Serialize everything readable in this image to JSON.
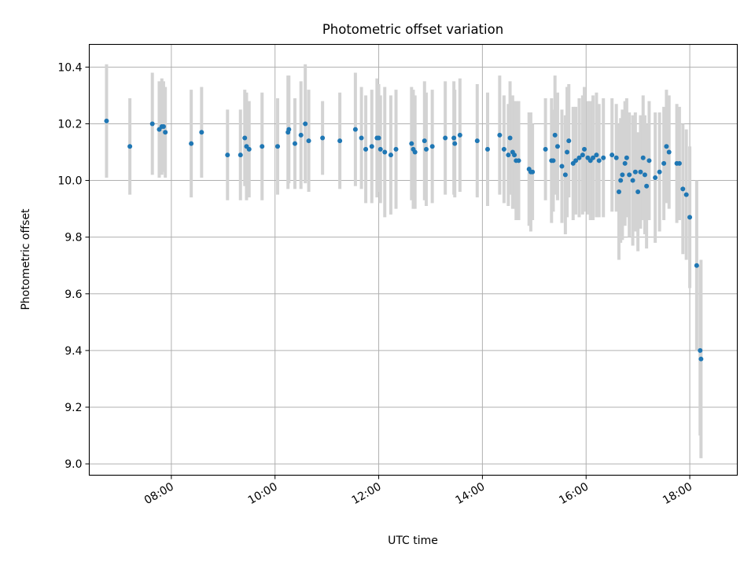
{
  "chart_data": {
    "type": "scatter",
    "title": "Photometric offset variation",
    "xlabel": "UTC time",
    "ylabel": "Photometric offset",
    "x_tick_labels": [
      "08:00",
      "10:00",
      "12:00",
      "14:00",
      "16:00",
      "18:00"
    ],
    "x_ticks": [
      "08:00",
      "10:00",
      "12:00",
      "14:00",
      "16:00",
      "18:00"
    ],
    "y_ticks": [
      9.0,
      9.2,
      9.4,
      9.6,
      9.8,
      10.0,
      10.2,
      10.4
    ],
    "y_tick_labels": [
      "9.0",
      "9.2",
      "9.4",
      "9.6",
      "9.8",
      "10.0",
      "10.2",
      "10.4"
    ],
    "xlim": [
      "06:25",
      "18:55"
    ],
    "ylim": [
      8.96,
      10.48
    ],
    "grid": true,
    "legend": "none",
    "colors": {
      "points": "#1f77b4",
      "error_bars": "#d3d3d3",
      "grid": "#b0b0b0"
    },
    "series": [
      {
        "points": [
          [
            "06:45",
            10.21,
            0.2
          ],
          [
            "07:12",
            10.12,
            0.17
          ],
          [
            "07:38",
            10.2,
            0.18
          ],
          [
            "07:46",
            10.18,
            0.17
          ],
          [
            "07:49",
            10.19,
            0.17
          ],
          [
            "07:51",
            10.19,
            0.16
          ],
          [
            "07:53",
            10.17,
            0.16
          ],
          [
            "08:23",
            10.13,
            0.19
          ],
          [
            "08:35",
            10.17,
            0.16
          ],
          [
            "09:05",
            10.09,
            0.16
          ],
          [
            "09:20",
            10.09,
            0.16
          ],
          [
            "09:25",
            10.15,
            0.17
          ],
          [
            "09:27",
            10.12,
            0.19
          ],
          [
            "09:30",
            10.11,
            0.17
          ],
          [
            "09:45",
            10.12,
            0.19
          ],
          [
            "10:03",
            10.12,
            0.17
          ],
          [
            "10:15",
            10.17,
            0.2
          ],
          [
            "10:16",
            10.18,
            0.19
          ],
          [
            "10:23",
            10.13,
            0.16
          ],
          [
            "10:30",
            10.16,
            0.19
          ],
          [
            "10:35",
            10.2,
            0.21
          ],
          [
            "10:39",
            10.14,
            0.18
          ],
          [
            "10:55",
            10.15,
            0.13
          ],
          [
            "11:15",
            10.14,
            0.17
          ],
          [
            "11:33",
            10.18,
            0.2
          ],
          [
            "11:40",
            10.15,
            0.18
          ],
          [
            "11:45",
            10.11,
            0.19
          ],
          [
            "11:52",
            10.12,
            0.2
          ],
          [
            "11:58",
            10.15,
            0.21
          ],
          [
            "12:00",
            10.15,
            0.19
          ],
          [
            "12:02",
            10.11,
            0.19
          ],
          [
            "12:07",
            10.1,
            0.23
          ],
          [
            "12:14",
            10.09,
            0.21
          ],
          [
            "12:20",
            10.11,
            0.21
          ],
          [
            "12:38",
            10.13,
            0.2
          ],
          [
            "12:40",
            10.11,
            0.21
          ],
          [
            "12:42",
            10.1,
            0.2
          ],
          [
            "12:53",
            10.14,
            0.21
          ],
          [
            "12:55",
            10.11,
            0.2
          ],
          [
            "13:02",
            10.12,
            0.2
          ],
          [
            "13:17",
            10.15,
            0.2
          ],
          [
            "13:27",
            10.15,
            0.2
          ],
          [
            "13:28",
            10.13,
            0.19
          ],
          [
            "13:34",
            10.16,
            0.2
          ],
          [
            "13:54",
            10.14,
            0.2
          ],
          [
            "14:06",
            10.11,
            0.2
          ],
          [
            "14:20",
            10.16,
            0.21
          ],
          [
            "14:25",
            10.11,
            0.19
          ],
          [
            "14:30",
            10.09,
            0.18
          ],
          [
            "14:32",
            10.15,
            0.2
          ],
          [
            "14:35",
            10.1,
            0.2
          ],
          [
            "14:37",
            10.09,
            0.19
          ],
          [
            "14:39",
            10.07,
            0.21
          ],
          [
            "14:42",
            10.07,
            0.21
          ],
          [
            "14:54",
            10.04,
            0.2
          ],
          [
            "14:56",
            10.03,
            0.21
          ],
          [
            "14:58",
            10.03,
            0.17
          ],
          [
            "15:13",
            10.11,
            0.18
          ],
          [
            "15:20",
            10.07,
            0.22
          ],
          [
            "15:22",
            10.07,
            0.18
          ],
          [
            "15:24",
            10.16,
            0.21
          ],
          [
            "15:27",
            10.12,
            0.19
          ],
          [
            "15:32",
            10.05,
            0.2
          ],
          [
            "15:36",
            10.02,
            0.21
          ],
          [
            "15:38",
            10.1,
            0.23
          ],
          [
            "15:40",
            10.14,
            0.2
          ],
          [
            "15:45",
            10.06,
            0.2
          ],
          [
            "15:48",
            10.07,
            0.19
          ],
          [
            "15:52",
            10.08,
            0.21
          ],
          [
            "15:56",
            10.09,
            0.21
          ],
          [
            "15:58",
            10.11,
            0.22
          ],
          [
            "16:02",
            10.08,
            0.2
          ],
          [
            "16:05",
            10.07,
            0.21
          ],
          [
            "16:08",
            10.08,
            0.22
          ],
          [
            "16:12",
            10.09,
            0.22
          ],
          [
            "16:15",
            10.07,
            0.2
          ],
          [
            "16:20",
            10.08,
            0.21
          ],
          [
            "16:30",
            10.09,
            0.2
          ],
          [
            "16:35",
            10.08,
            0.19
          ],
          [
            "16:38",
            9.96,
            0.24
          ],
          [
            "16:40",
            10.0,
            0.22
          ],
          [
            "16:42",
            10.02,
            0.23
          ],
          [
            "16:45",
            10.06,
            0.22
          ],
          [
            "16:47",
            10.08,
            0.21
          ],
          [
            "16:50",
            10.02,
            0.22
          ],
          [
            "16:54",
            10.0,
            0.23
          ],
          [
            "16:57",
            10.03,
            0.21
          ],
          [
            "17:00",
            9.96,
            0.21
          ],
          [
            "17:03",
            10.03,
            0.2
          ],
          [
            "17:06",
            10.08,
            0.22
          ],
          [
            "17:08",
            10.02,
            0.21
          ],
          [
            "17:10",
            9.98,
            0.22
          ],
          [
            "17:13",
            10.07,
            0.21
          ],
          [
            "17:20",
            10.01,
            0.23
          ],
          [
            "17:25",
            10.03,
            0.21
          ],
          [
            "17:30",
            10.06,
            0.2
          ],
          [
            "17:33",
            10.12,
            0.2
          ],
          [
            "17:36",
            10.1,
            0.2
          ],
          [
            "17:45",
            10.06,
            0.21
          ],
          [
            "17:48",
            10.06,
            0.2
          ],
          [
            "17:52",
            9.97,
            0.23
          ],
          [
            "17:56",
            9.95,
            0.23
          ],
          [
            "18:00",
            9.87,
            0.25
          ],
          [
            "18:08",
            9.7,
            0.3
          ],
          [
            "18:12",
            9.4,
            0.3
          ],
          [
            "18:13",
            9.37,
            0.35
          ]
        ]
      }
    ]
  }
}
